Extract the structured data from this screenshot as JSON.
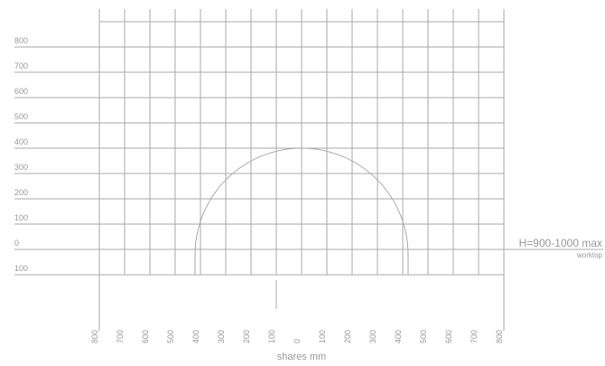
{
  "diagram": {
    "left_labels": [
      "800",
      "700",
      "600",
      "500",
      "400",
      "300",
      "200",
      "100",
      "0",
      "100"
    ],
    "bottom_labels": [
      "800",
      "700",
      "600",
      "500",
      "400",
      "300",
      "200",
      "100",
      "0",
      "100",
      "200",
      "300",
      "400",
      "500",
      "600",
      "700",
      "800"
    ],
    "axis_label": "shares mm",
    "height_note": "H=900-1000 max",
    "height_subnote": "worktop"
  }
}
